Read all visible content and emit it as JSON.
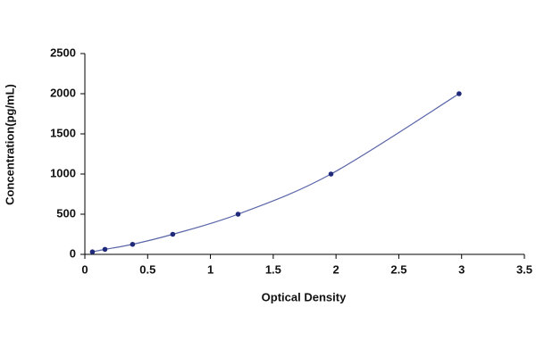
{
  "chart_data": {
    "type": "scatter",
    "x_label": "Optical Density",
    "y_label": "Concentration(pg/mL)",
    "xlim": [
      0,
      3.5
    ],
    "xticks": [
      0,
      0.5,
      1,
      1.5,
      2,
      2.5,
      3,
      3.5
    ],
    "ylim": [
      0,
      2500
    ],
    "yticks": [
      0,
      500,
      1000,
      1500,
      2000,
      2500
    ],
    "grid": false,
    "series": [
      {
        "name": "Standard",
        "color": "#1f2a7a",
        "line_color": "#5a66a8",
        "x": [
          0.06,
          0.16,
          0.38,
          0.7,
          1.22,
          1.96,
          2.98
        ],
        "values": [
          31.25,
          62.5,
          125,
          250,
          500,
          1000,
          2000
        ]
      }
    ]
  }
}
